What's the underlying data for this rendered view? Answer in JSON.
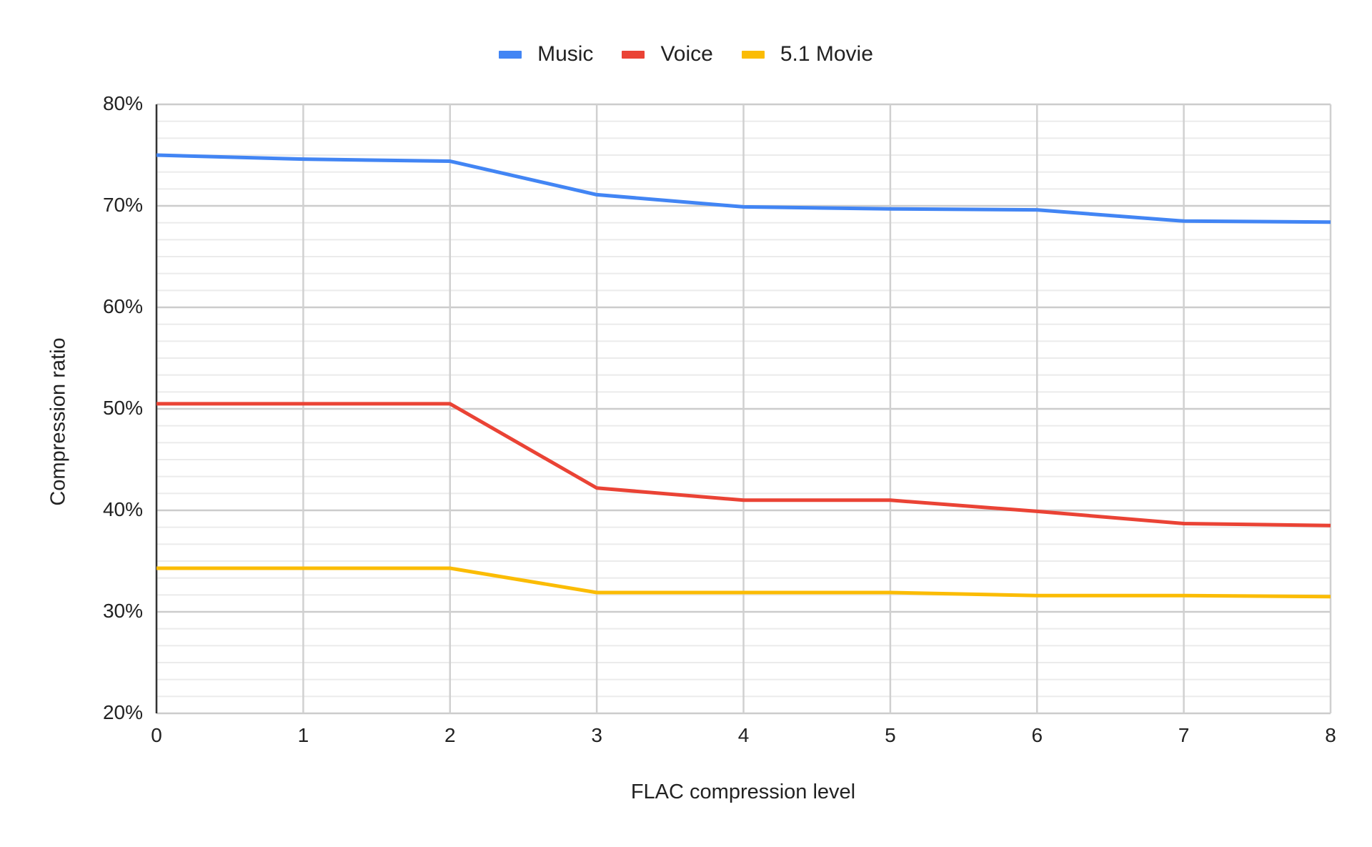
{
  "legend": [
    {
      "name": "Music",
      "color": "#4285F4"
    },
    {
      "name": "Voice",
      "color": "#EA4335"
    },
    {
      "name": "5.1 Movie",
      "color": "#FBBC04"
    }
  ],
  "axes": {
    "x_title": "FLAC compression level",
    "y_title": "Compression ratio",
    "y_ticks": [
      "20%",
      "30%",
      "40%",
      "50%",
      "60%",
      "70%",
      "80%"
    ],
    "x_ticks": [
      "0",
      "1",
      "2",
      "3",
      "4",
      "5",
      "6",
      "7",
      "8"
    ]
  },
  "chart_data": {
    "type": "line",
    "title": "",
    "xlabel": "FLAC compression level",
    "ylabel": "Compression ratio",
    "x": [
      0,
      1,
      2,
      3,
      4,
      5,
      6,
      7,
      8
    ],
    "ylim": [
      20,
      80
    ],
    "y_unit": "%",
    "y_major_step": 10,
    "y_minor_divisions": 6,
    "grid": true,
    "legend_position": "top",
    "series": [
      {
        "name": "Music",
        "color": "#4285F4",
        "values": [
          75.0,
          74.6,
          74.4,
          71.1,
          69.9,
          69.7,
          69.6,
          68.5,
          68.4
        ]
      },
      {
        "name": "Voice",
        "color": "#EA4335",
        "values": [
          50.5,
          50.5,
          50.5,
          42.2,
          41.0,
          41.0,
          39.9,
          38.7,
          38.5
        ]
      },
      {
        "name": "5.1 Movie",
        "color": "#FBBC04",
        "values": [
          34.3,
          34.3,
          34.3,
          31.9,
          31.9,
          31.9,
          31.6,
          31.6,
          31.5
        ]
      }
    ]
  }
}
